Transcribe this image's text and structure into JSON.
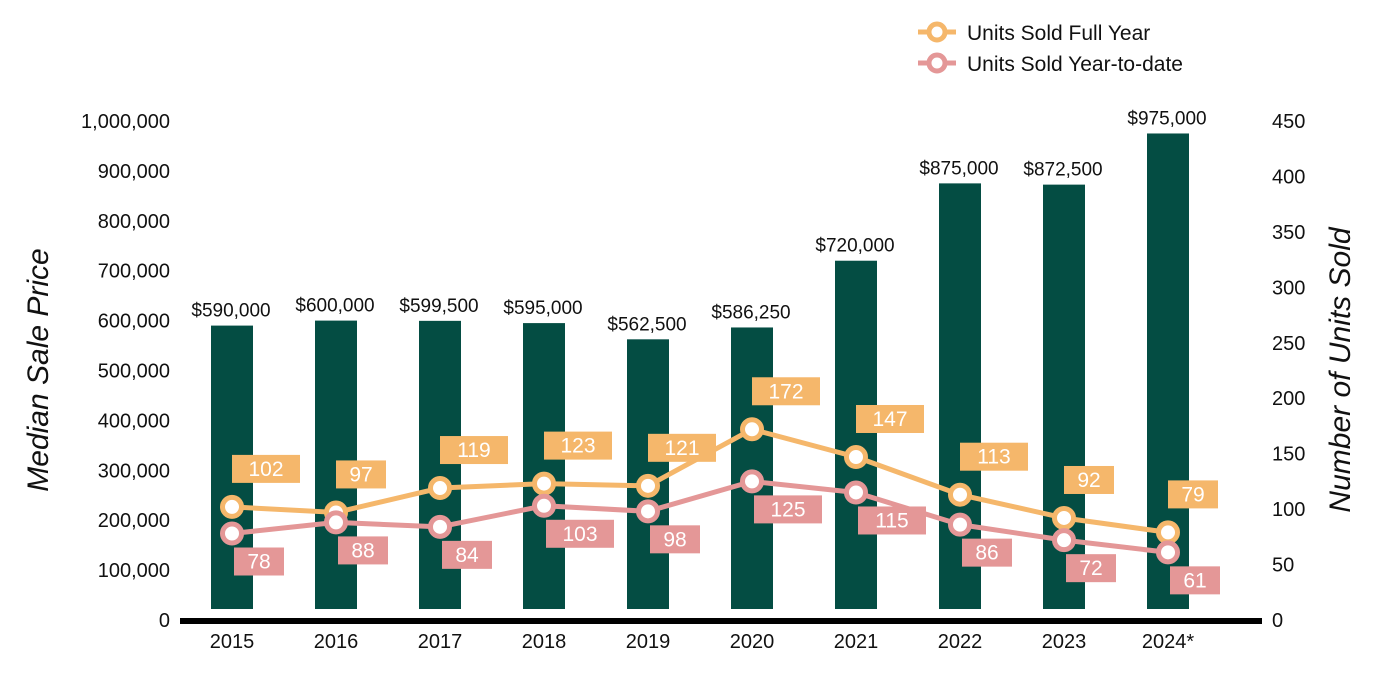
{
  "chart_data": {
    "type": "bar",
    "categories": [
      "2015",
      "2016",
      "2017",
      "2018",
      "2019",
      "2020",
      "2021",
      "2022",
      "2023",
      "2024*"
    ],
    "bar_series": {
      "values": [
        590000,
        600000,
        599500,
        595000,
        562500,
        586250,
        720000,
        875000,
        872500,
        975000
      ],
      "data_labels": [
        "$590,000",
        "$600,000",
        "$599,500",
        "$595,000",
        "$562,500",
        "$586,250",
        "$720,000",
        "$875,000",
        "$872,500",
        "$975,000"
      ],
      "color": "#044d43"
    },
    "line_series": [
      {
        "name": "Units Sold Full Year",
        "type": "line",
        "axis": "right",
        "values": [
          102,
          97,
          119,
          123,
          121,
          172,
          147,
          113,
          92,
          79
        ],
        "color": "#f5b76b",
        "label_position": "above"
      },
      {
        "name": "Units Sold Year-to-date",
        "type": "line",
        "axis": "right",
        "values": [
          78,
          88,
          84,
          103,
          98,
          125,
          115,
          86,
          72,
          61
        ],
        "color": "#e49797",
        "label_position": "below"
      }
    ],
    "ylabel": "Median Sale Price",
    "y2label": "Number of Units Sold",
    "ylim": [
      0,
      1000000
    ],
    "y2lim": [
      0,
      450
    ],
    "y_ticks": [
      "0",
      "100,000",
      "200,000",
      "300,000",
      "400,000",
      "500,000",
      "600,000",
      "700,000",
      "800,000",
      "900,000",
      "1,000,000"
    ],
    "y2_ticks": [
      "0",
      "50",
      "100",
      "150",
      "200",
      "250",
      "300",
      "350",
      "400",
      "450"
    ],
    "legend_position": "top-right",
    "grid": false
  }
}
